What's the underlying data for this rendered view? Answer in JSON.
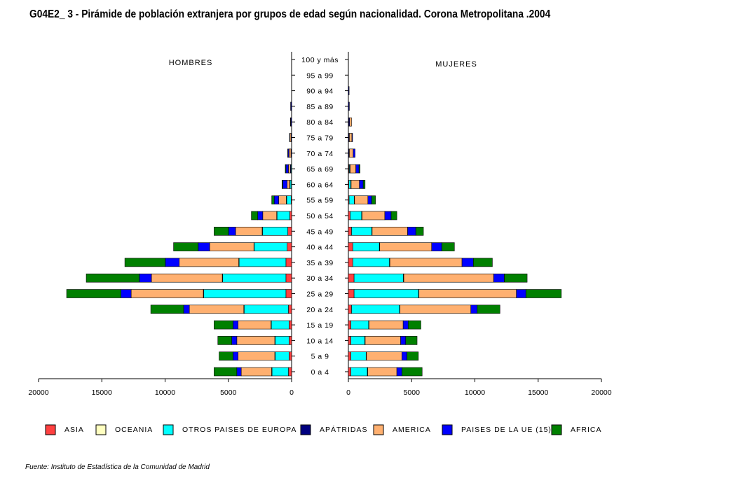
{
  "title": "G04E2_ 3 - Pirámide de población extranjera por grupos de edad según nacionalidad.  Corona Metropolitana .2004",
  "source": "Fuente: Instituto de Estadística de la Comunidad de Madrid",
  "chart_data": {
    "type": "bar",
    "orientation": "horizontal-pyramid",
    "left_label": "HOMBRES",
    "right_label": "MUJERES",
    "categories": [
      "100 y más",
      "95 a 99",
      "90 a 94",
      "85 a 89",
      "80 a 84",
      "75 a 79",
      "70 a 74",
      "65 a 69",
      "60 a 64",
      "55 a 59",
      "50 a 54",
      "45 a 49",
      "40 a  44",
      "35 a 39",
      "30 a 34",
      "25 a 29",
      "20 a 24",
      "15 a 19",
      "10 a 14",
      "5 a 9",
      "0 a 4"
    ],
    "x_ticks": [
      20000,
      15000,
      10000,
      5000,
      0
    ],
    "xlim": [
      0,
      20000
    ],
    "series": [
      {
        "name": "ASIA",
        "color": "#ff4040",
        "hombres": [
          0,
          0,
          0,
          0,
          0,
          0,
          0,
          0,
          20,
          40,
          150,
          300,
          350,
          450,
          450,
          450,
          250,
          200,
          200,
          200,
          250
        ],
        "mujeres": [
          0,
          0,
          0,
          0,
          20,
          20,
          20,
          40,
          40,
          60,
          150,
          250,
          350,
          350,
          450,
          450,
          250,
          200,
          200,
          200,
          200
        ]
      },
      {
        "name": "OCEANIA",
        "color": "#ffffc0",
        "hombres": [
          0,
          0,
          0,
          0,
          0,
          0,
          0,
          0,
          0,
          0,
          0,
          0,
          0,
          0,
          0,
          0,
          0,
          0,
          0,
          0,
          0
        ],
        "mujeres": [
          0,
          0,
          0,
          0,
          0,
          0,
          0,
          0,
          0,
          0,
          0,
          0,
          0,
          0,
          0,
          0,
          0,
          0,
          0,
          0,
          0
        ]
      },
      {
        "name": "OTROS PAISES DE EUROPA",
        "color": "#00ffff",
        "hombres": [
          0,
          0,
          0,
          0,
          0,
          0,
          0,
          50,
          100,
          350,
          1000,
          2000,
          2600,
          3700,
          5000,
          6500,
          3500,
          1400,
          1100,
          1100,
          1300
        ],
        "mujeres": [
          0,
          0,
          0,
          0,
          0,
          0,
          0,
          50,
          150,
          400,
          900,
          1600,
          2100,
          2900,
          3900,
          5100,
          3800,
          1400,
          1100,
          1200,
          1300
        ]
      },
      {
        "name": "APÁTRIDAS",
        "color": "#000080",
        "hombres": [
          0,
          0,
          0,
          80,
          80,
          50,
          50,
          50,
          30,
          30,
          30,
          30,
          30,
          30,
          30,
          30,
          30,
          30,
          30,
          30,
          30
        ],
        "mujeres": [
          0,
          0,
          60,
          80,
          80,
          60,
          60,
          50,
          30,
          30,
          30,
          30,
          30,
          30,
          30,
          30,
          30,
          30,
          30,
          30,
          30
        ]
      },
      {
        "name": "AMERICA",
        "color": "#ffb070",
        "hombres": [
          0,
          0,
          0,
          0,
          20,
          80,
          150,
          150,
          200,
          600,
          1100,
          2100,
          3500,
          4700,
          5600,
          5700,
          4300,
          2600,
          3000,
          2900,
          2400
        ],
        "mujeres": [
          0,
          0,
          0,
          0,
          150,
          200,
          300,
          450,
          650,
          1050,
          1800,
          2800,
          4100,
          5700,
          7100,
          7700,
          5600,
          2700,
          2800,
          2800,
          2300
        ]
      },
      {
        "name": "PAISES DE LA UE (15)",
        "color": "#0000ff",
        "hombres": [
          0,
          0,
          0,
          0,
          0,
          30,
          80,
          200,
          350,
          350,
          400,
          550,
          900,
          1100,
          950,
          800,
          450,
          400,
          400,
          400,
          350
        ],
        "mujeres": [
          0,
          0,
          0,
          0,
          0,
          50,
          150,
          250,
          300,
          300,
          500,
          650,
          800,
          900,
          850,
          750,
          500,
          400,
          400,
          400,
          400
        ]
      },
      {
        "name": "AFRICA",
        "color": "#008000",
        "hombres": [
          0,
          0,
          0,
          0,
          0,
          0,
          30,
          50,
          60,
          200,
          500,
          1150,
          1950,
          3200,
          4200,
          4300,
          2600,
          1500,
          1100,
          1100,
          1800
        ],
        "mujeres": [
          0,
          0,
          0,
          0,
          0,
          0,
          0,
          80,
          150,
          300,
          450,
          600,
          1000,
          1500,
          1800,
          2800,
          1800,
          1000,
          900,
          900,
          1600
        ]
      }
    ]
  }
}
